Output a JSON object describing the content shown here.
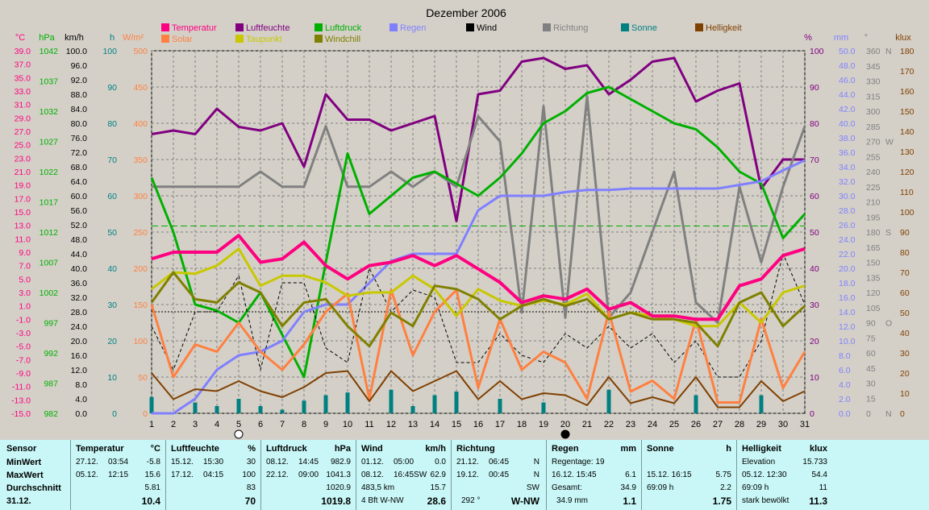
{
  "title": "Dezember 2006",
  "legend": [
    {
      "name": "Temperatur",
      "color": "#ff0080"
    },
    {
      "name": "Solar",
      "color": "#ff8040"
    },
    {
      "name": "Luftfeuchte",
      "color": "#800080"
    },
    {
      "name": "Taupunkt",
      "color": "#c8c800"
    },
    {
      "name": "Luftdruck",
      "color": "#00b000"
    },
    {
      "name": "Windchill",
      "color": "#808000"
    },
    {
      "name": "Regen",
      "color": "#8080ff"
    },
    {
      "name": "Wind",
      "color": "#000000"
    },
    {
      "name": "Richtung",
      "color": "#808080"
    },
    {
      "name": "Sonne",
      "color": "#008080"
    },
    {
      "name": "Helligkeit",
      "color": "#804000"
    }
  ],
  "axes": {
    "units": {
      "temp": "°C",
      "hpa": "hPa",
      "kmh": "km/h",
      "h": "h",
      "wm2": "W/m²",
      "pct": "%",
      "mm": "mm",
      "deg": "°",
      "klux": "klux"
    },
    "temp_ticks": [
      "39.0",
      "37.0",
      "35.0",
      "33.0",
      "31.0",
      "29.0",
      "27.0",
      "25.0",
      "23.0",
      "21.0",
      "19.0",
      "17.0",
      "15.0",
      "13.0",
      "11.0",
      "9.0",
      "7.0",
      "5.0",
      "3.0",
      "1.0",
      "-1.0",
      "-3.0",
      "-5.0",
      "-7.0",
      "-9.0",
      "-11.0",
      "-13.0",
      "-15.0"
    ],
    "hpa_ticks": [
      "1042",
      "1037",
      "1032",
      "1027",
      "1022",
      "1017",
      "1012",
      "1007",
      "1002",
      "997",
      "992",
      "987",
      "982"
    ],
    "kmh_ticks": [
      "100.0",
      "96.0",
      "92.0",
      "88.0",
      "84.0",
      "80.0",
      "76.0",
      "72.0",
      "68.0",
      "64.0",
      "60.0",
      "56.0",
      "52.0",
      "48.0",
      "44.0",
      "40.0",
      "36.0",
      "32.0",
      "28.0",
      "24.0",
      "20.0",
      "16.0",
      "12.0",
      "8.0",
      "4.0",
      "0.0"
    ],
    "h_ticks": [
      "100",
      "90",
      "80",
      "70",
      "60",
      "50",
      "40",
      "30",
      "20",
      "10",
      "0"
    ],
    "wm2_ticks": [
      "500",
      "450",
      "400",
      "350",
      "300",
      "250",
      "200",
      "150",
      "100",
      "50",
      "0"
    ],
    "pct_ticks": [
      "100",
      "90",
      "80",
      "70",
      "60",
      "50",
      "40",
      "30",
      "20",
      "10",
      "0"
    ],
    "mm_ticks": [
      "50.0",
      "48.0",
      "46.0",
      "44.0",
      "42.0",
      "40.0",
      "38.0",
      "36.0",
      "34.0",
      "32.0",
      "30.0",
      "28.0",
      "26.0",
      "24.0",
      "22.0",
      "20.0",
      "18.0",
      "16.0",
      "14.0",
      "12.0",
      "10.0",
      "8.0",
      "6.0",
      "4.0",
      "2.0",
      "0.0"
    ],
    "deg_ticks": [
      "360",
      "345",
      "330",
      "315",
      "300",
      "285",
      "270",
      "255",
      "240",
      "225",
      "210",
      "195",
      "180",
      "165",
      "150",
      "135",
      "120",
      "105",
      "90",
      "75",
      "60",
      "45",
      "30",
      "15",
      "0"
    ],
    "deg_dirs": [
      {
        "deg": 360,
        "t": "N"
      },
      {
        "deg": 270,
        "t": "W"
      },
      {
        "deg": 180,
        "t": "S"
      },
      {
        "deg": 90,
        "t": "O"
      },
      {
        "deg": 0,
        "t": "N"
      }
    ],
    "klux_ticks": [
      "180",
      "170",
      "160",
      "150",
      "140",
      "130",
      "120",
      "110",
      "100",
      "90",
      "80",
      "70",
      "60",
      "50",
      "40",
      "30",
      "20",
      "10",
      "0"
    ],
    "x_ticks": [
      "1",
      "2",
      "3",
      "4",
      "5",
      "6",
      "7",
      "8",
      "9",
      "10",
      "11",
      "12",
      "13",
      "14",
      "15",
      "16",
      "17",
      "18",
      "19",
      "20",
      "21",
      "22",
      "23",
      "24",
      "25",
      "26",
      "27",
      "28",
      "29",
      "30",
      "31"
    ]
  },
  "chart_data": {
    "type": "line",
    "title": "Dezember 2006",
    "x": [
      1,
      2,
      3,
      4,
      5,
      6,
      7,
      8,
      9,
      10,
      11,
      12,
      13,
      14,
      15,
      16,
      17,
      18,
      19,
      20,
      21,
      22,
      23,
      24,
      25,
      26,
      27,
      28,
      29,
      30,
      31
    ],
    "moon_markers": [
      {
        "day": 5,
        "phase": "full"
      },
      {
        "day": 20,
        "phase": "new"
      }
    ],
    "reference_lines": [
      {
        "axis": "luftdruck_hpa",
        "value": 1013,
        "style": "dashed",
        "color": "#00b000"
      },
      {
        "axis": "wind_kmh",
        "value": 28,
        "style": "dotted",
        "color": "#000000"
      }
    ],
    "series": [
      {
        "name": "Luftfeuchte",
        "axis": "pct",
        "color": "#800080",
        "width": 3,
        "values": [
          77,
          78,
          77,
          84,
          79,
          78,
          80,
          68,
          88,
          81,
          81,
          78,
          80,
          82,
          53,
          88,
          89,
          97,
          98,
          95,
          96,
          88,
          92,
          97,
          98,
          86,
          89,
          91,
          62,
          70,
          70
        ]
      },
      {
        "name": "Richtung",
        "axis": "deg",
        "color": "#808080",
        "width": 3,
        "values": [
          225,
          225,
          225,
          225,
          225,
          240,
          225,
          225,
          285,
          225,
          225,
          240,
          225,
          240,
          225,
          295,
          270,
          100,
          305,
          95,
          315,
          95,
          120,
          180,
          240,
          110,
          90,
          225,
          150,
          225,
          285
        ]
      },
      {
        "name": "Luftdruck",
        "axis": "hpa",
        "color": "#00b000",
        "width": 3,
        "values": [
          1021,
          1012,
          1000,
          999,
          997,
          1002,
          995,
          988,
          1007,
          1025,
          1015,
          1018,
          1021,
          1022,
          1020,
          1018,
          1021,
          1025,
          1030,
          1032,
          1035,
          1036,
          1034,
          1032,
          1030,
          1029,
          1026,
          1022,
          1020,
          1011,
          1015
        ]
      },
      {
        "name": "Regen",
        "axis": "mm",
        "color": "#8080ff",
        "width": 3,
        "values": [
          0,
          0,
          2,
          6,
          8,
          8.5,
          10,
          14,
          15,
          15,
          18,
          21,
          22,
          22,
          22,
          28,
          30,
          30,
          30,
          30.5,
          30.8,
          30.8,
          31,
          31,
          31,
          31,
          31,
          31.5,
          32,
          33.5,
          34.9
        ]
      },
      {
        "name": "Wind",
        "axis": "kmh",
        "color": "#000000",
        "width": 1,
        "dash": "4,3",
        "values": [
          24,
          12,
          28,
          28,
          38,
          12,
          36,
          36,
          18,
          14,
          40,
          28,
          34,
          32,
          14,
          14,
          22,
          16,
          14,
          22,
          18,
          24,
          18,
          22,
          14,
          20,
          10,
          10,
          20,
          44,
          30
        ]
      },
      {
        "name": "Solar",
        "axis": "wm2",
        "color": "#ff8040",
        "width": 3,
        "values": [
          150,
          50,
          95,
          85,
          125,
          85,
          60,
          95,
          140,
          165,
          20,
          170,
          80,
          140,
          170,
          35,
          130,
          60,
          85,
          70,
          20,
          140,
          30,
          45,
          20,
          130,
          15,
          15,
          130,
          35,
          85
        ]
      },
      {
        "name": "Taupunkt",
        "axis": "temp",
        "color": "#c8c800",
        "width": 3,
        "values": [
          3.5,
          6.0,
          5.8,
          7.0,
          9.5,
          4.0,
          5.5,
          5.5,
          4.5,
          2.5,
          3.0,
          3.0,
          5.5,
          3.5,
          -0.5,
          3.5,
          1.8,
          1.0,
          1.8,
          1.2,
          2.8,
          -1.0,
          0,
          -0.5,
          -1.0,
          -2.0,
          -2.0,
          1.5,
          -1.5,
          3.0,
          4.0
        ]
      },
      {
        "name": "Windchill",
        "axis": "temp",
        "color": "#808000",
        "width": 3,
        "values": [
          1.5,
          6.0,
          2.0,
          1.5,
          4.5,
          3.0,
          -2.0,
          1.5,
          2.0,
          -2.0,
          -5.0,
          0,
          -2.0,
          4.0,
          3.5,
          2.0,
          -1.0,
          1.0,
          2.0,
          1.0,
          2.0,
          -1.0,
          0,
          -1.0,
          -1.0,
          -1.5,
          -5.0,
          1.5,
          3.0,
          -2.0,
          1.0
        ]
      },
      {
        "name": "Temperatur",
        "axis": "temp",
        "color": "#ff0080",
        "width": 4,
        "values": [
          8.0,
          9.0,
          9.0,
          9.0,
          11.5,
          7.5,
          8.0,
          10.5,
          7.0,
          5.0,
          7.0,
          7.5,
          8.5,
          7.0,
          8.5,
          6.5,
          4.5,
          1.5,
          2.5,
          2.0,
          3.5,
          0.5,
          1.5,
          -0.5,
          -0.5,
          -1.0,
          -1.0,
          4.0,
          5.0,
          8.5,
          9.5
        ]
      },
      {
        "name": "Helligkeit",
        "axis": "klux",
        "color": "#804000",
        "width": 2,
        "values": [
          20,
          7,
          12,
          11,
          16,
          11,
          8,
          13,
          20,
          21,
          6,
          21,
          11,
          16,
          21,
          7,
          16,
          7,
          10,
          9,
          4,
          18,
          5,
          8,
          5,
          18,
          3,
          3,
          16,
          6,
          11
        ]
      },
      {
        "name": "Sonne",
        "axis": "h",
        "color": "#008080",
        "type": "bar",
        "values": [
          4.5,
          0,
          3.0,
          2.0,
          4.0,
          2.0,
          1.0,
          3.5,
          5.0,
          5.75,
          0,
          6.5,
          2.0,
          5.0,
          6.0,
          0,
          4.0,
          0,
          3.0,
          0,
          0,
          6.5,
          0,
          0,
          0,
          5.0,
          0,
          0,
          5.0,
          0,
          0
        ]
      }
    ]
  },
  "stats": {
    "sensor": {
      "header": "Sensor",
      "rows": [
        "MinWert",
        "MaxWert",
        "Durchschnitt",
        "31.12."
      ]
    },
    "temperatur": {
      "header": "Temperatur",
      "unit": "°C",
      "min_date": "27.12.",
      "min_time": "03:54",
      "min_val": "-5.8",
      "max_date": "05.12.",
      "max_time": "12:15",
      "max_val": "15.6",
      "avg": "5.81",
      "cur": "10.4"
    },
    "luftfeuchte": {
      "header": "Luftfeuchte",
      "unit": "%",
      "min_date": "15.12.",
      "min_time": "15:30",
      "min_val": "30",
      "max_date": "17.12.",
      "max_time": "04:15",
      "max_val": "100",
      "avg": "83",
      "cur": "70"
    },
    "luftdruck": {
      "header": "Luftdruck",
      "unit": "hPa",
      "min_date": "08.12.",
      "min_time": "14:45",
      "min_val": "982.9",
      "max_date": "22.12.",
      "max_time": "09:00",
      "max_val": "1041.3",
      "avg": "1020.9",
      "cur": "1019.8"
    },
    "wind": {
      "header": "Wind",
      "unit": "km/h",
      "min_date": "01.12.",
      "min_time": "05:00",
      "min_val": "0.0",
      "max_date": "08.12.",
      "max_time": "16:45SW",
      "max_val": "62.9",
      "avg_label": "483,5 km",
      "avg": "15.7",
      "cur_label": "4 Bft W-NW",
      "cur": "28.6"
    },
    "richtung": {
      "header": "Richtung",
      "min_date": "21.12.",
      "min_time": "06:45",
      "min_val": "N",
      "max_date": "19.12.",
      "max_time": "00:45",
      "max_val": "N",
      "avg": "SW",
      "cur_label": "292 °",
      "cur": "W-NW"
    },
    "regen": {
      "header": "Regen",
      "unit": "mm",
      "r1": "Regentage: 19",
      "r2_label": "16.12.  15:45",
      "r2": "6.1",
      "r3_label": "Gesamt:",
      "r3": "34.9",
      "r4_label": "34.9 mm",
      "r4": "1.1"
    },
    "sonne": {
      "header": "Sonne",
      "unit": "h",
      "r2_label": "15.12.  16:15",
      "r2": "5.75",
      "r3_label": "69:09 h",
      "r3": "2.2",
      "r4": "1.75"
    },
    "helligkeit": {
      "header": "Helligkeit",
      "unit": "klux",
      "r1_label": "Elevation",
      "r1": "15.733",
      "r2_label": "05.12.  12:30",
      "r2": "54.4",
      "r3_label": "69:09 h",
      "r3": "11",
      "r4_label": "stark bewölkt",
      "r4": "11.3"
    }
  }
}
